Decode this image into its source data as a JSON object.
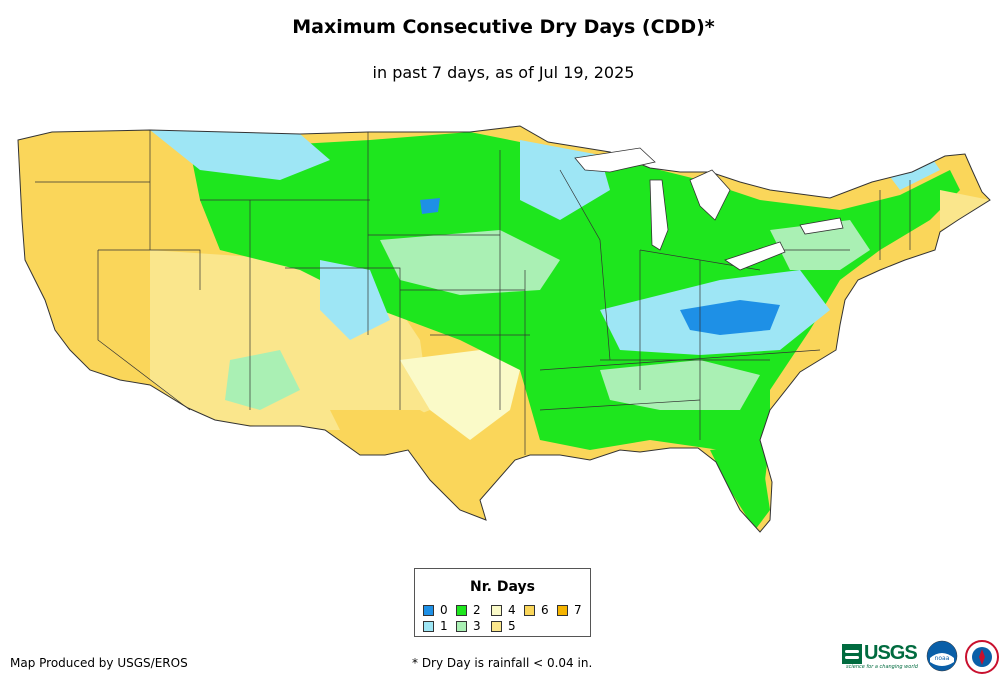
{
  "title": "Maximum Consecutive Dry Days (CDD)*",
  "subtitle": "in past 7 days, as of Jul 19, 2025",
  "legend": {
    "title": "Nr. Days",
    "items": [
      {
        "label": "0",
        "color": "#1e90e6"
      },
      {
        "label": "1",
        "color": "#9ee6f5"
      },
      {
        "label": "2",
        "color": "#1ee61e"
      },
      {
        "label": "3",
        "color": "#aaf0b4"
      },
      {
        "label": "4",
        "color": "#fafac8"
      },
      {
        "label": "5",
        "color": "#fae68c"
      },
      {
        "label": "6",
        "color": "#fad65a"
      },
      {
        "label": "7",
        "color": "#f5b400"
      }
    ]
  },
  "footer": {
    "credit": "Map Produced by USGS/EROS",
    "note": "* Dry Day is rainfall < 0.04 in."
  },
  "logos": {
    "usgs": "USGS",
    "usgs_tagline": "science for a changing world",
    "noaa": "noaa",
    "nws": "nws-seal-icon"
  }
}
